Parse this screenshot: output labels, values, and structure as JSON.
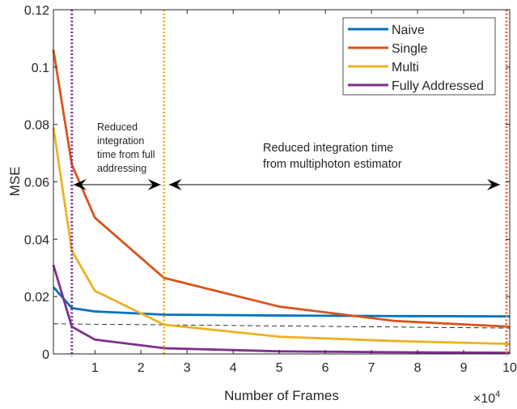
{
  "chart_data": {
    "type": "line",
    "xlabel": "Number of Frames",
    "ylabel": "MSE",
    "x_exponent_label": "×10",
    "x_exponent_power": "4",
    "xlim": [
      1000,
      100000
    ],
    "ylim": [
      0,
      0.12
    ],
    "x_ticks": [
      10000,
      20000,
      30000,
      40000,
      50000,
      60000,
      70000,
      80000,
      90000,
      100000
    ],
    "x_tick_labels": [
      "1",
      "2",
      "3",
      "4",
      "5",
      "6",
      "7",
      "8",
      "9",
      "10"
    ],
    "y_ticks": [
      0,
      0.02,
      0.04,
      0.06,
      0.08,
      0.1,
      0.12
    ],
    "y_tick_labels": [
      "0",
      "0.02",
      "0.04",
      "0.06",
      "0.08",
      "0.1",
      "0.12"
    ],
    "grid": false,
    "legend_position": "top-right",
    "x": [
      1000,
      5000,
      10000,
      25000,
      50000,
      75000,
      100000
    ],
    "series": [
      {
        "name": "Naive",
        "color": "#0072BD",
        "values": [
          0.0233,
          0.016,
          0.0148,
          0.0137,
          0.0134,
          0.0132,
          0.0131
        ]
      },
      {
        "name": "Single",
        "color": "#D95319",
        "values": [
          0.106,
          0.066,
          0.0475,
          0.0265,
          0.0165,
          0.0115,
          0.0095
        ]
      },
      {
        "name": "Multi",
        "color": "#EDB120",
        "values": [
          0.079,
          0.036,
          0.022,
          0.0102,
          0.006,
          0.0045,
          0.0035
        ]
      },
      {
        "name": "Fully Addressed",
        "color": "#7E2F8E",
        "values": [
          0.031,
          0.0095,
          0.005,
          0.002,
          0.0009,
          0.0006,
          0.0004
        ]
      }
    ],
    "reference_line": {
      "x": [
        1000,
        100000
      ],
      "y": [
        0.0105,
        0.009
      ],
      "color": "#000000",
      "style": "dashed"
    },
    "vertical_markers": [
      {
        "x": 5000,
        "color": "#7E2F8E"
      },
      {
        "x": 25000,
        "color": "#EDB120"
      },
      {
        "x": 99300,
        "color": "#F0643C"
      }
    ],
    "annotations": [
      {
        "text_lines": [
          "Reduced",
          "integration",
          "time from full",
          "addressing"
        ],
        "arrow_from": 5000,
        "arrow_to": 25000,
        "arrow_y": 0.059
      },
      {
        "text_lines": [
          "Reduced integration time",
          "from multiphoton estimator"
        ],
        "arrow_from": 25000,
        "arrow_to": 100000,
        "arrow_y": 0.059
      }
    ]
  }
}
